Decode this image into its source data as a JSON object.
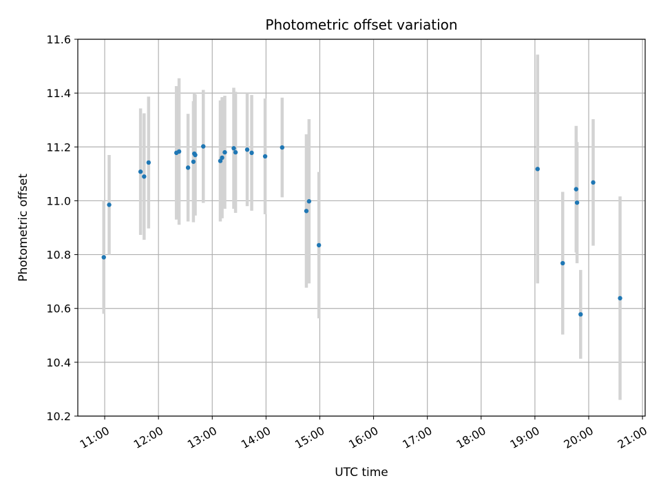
{
  "chart_data": {
    "type": "scatter",
    "title": "Photometric offset variation",
    "xlabel": "UTC time",
    "ylabel": "Photometric offset",
    "ylim": [
      10.2,
      11.6
    ],
    "xlim": [
      "10:30",
      "21:03"
    ],
    "grid": true,
    "x_ticks": [
      "11:00",
      "12:00",
      "13:00",
      "14:00",
      "15:00",
      "16:00",
      "17:00",
      "18:00",
      "19:00",
      "20:00",
      "21:00"
    ],
    "y_ticks": [
      "10.2",
      "10.4",
      "10.6",
      "10.8",
      "11.0",
      "11.2",
      "11.4",
      "11.6"
    ],
    "colors": {
      "points": "#1f77b4",
      "error_bars": "#d3d3d3",
      "grid": "#b0b0b0"
    },
    "series": [
      {
        "points": [
          {
            "x": "10:59",
            "y": 10.79,
            "err": 0.21
          },
          {
            "x": "11:05",
            "y": 10.985,
            "err": 0.185
          },
          {
            "x": "11:40",
            "y": 11.108,
            "err": 0.235
          },
          {
            "x": "11:44",
            "y": 11.09,
            "err": 0.235
          },
          {
            "x": "11:49",
            "y": 11.142,
            "err": 0.245
          },
          {
            "x": "12:20",
            "y": 11.178,
            "err": 0.248
          },
          {
            "x": "12:23",
            "y": 11.183,
            "err": 0.272
          },
          {
            "x": "12:33",
            "y": 11.123,
            "err": 0.2
          },
          {
            "x": "12:39",
            "y": 11.145,
            "err": 0.225
          },
          {
            "x": "12:40",
            "y": 11.175,
            "err": 0.225
          },
          {
            "x": "12:41",
            "y": 11.17,
            "err": 0.225
          },
          {
            "x": "12:50",
            "y": 11.202,
            "err": 0.21
          },
          {
            "x": "13:09",
            "y": 11.148,
            "err": 0.225
          },
          {
            "x": "13:11",
            "y": 11.16,
            "err": 0.225
          },
          {
            "x": "13:14",
            "y": 11.18,
            "err": 0.21
          },
          {
            "x": "13:24",
            "y": 11.195,
            "err": 0.225
          },
          {
            "x": "13:26",
            "y": 11.18,
            "err": 0.225
          },
          {
            "x": "13:39",
            "y": 11.19,
            "err": 0.21
          },
          {
            "x": "13:44",
            "y": 11.178,
            "err": 0.215
          },
          {
            "x": "13:59",
            "y": 11.165,
            "err": 0.215
          },
          {
            "x": "14:18",
            "y": 11.198,
            "err": 0.185
          },
          {
            "x": "14:45",
            "y": 10.962,
            "err": 0.285
          },
          {
            "x": "14:48",
            "y": 10.998,
            "err": 0.305
          },
          {
            "x": "14:59",
            "y": 10.835,
            "err": 0.272
          },
          {
            "x": "19:03",
            "y": 11.118,
            "err": 0.425
          },
          {
            "x": "19:31",
            "y": 10.768,
            "err": 0.265
          },
          {
            "x": "19:46",
            "y": 11.043,
            "err": 0.235
          },
          {
            "x": "19:47",
            "y": 10.993,
            "err": 0.225
          },
          {
            "x": "19:51",
            "y": 10.578,
            "err": 0.165
          },
          {
            "x": "20:05",
            "y": 11.068,
            "err": 0.235
          },
          {
            "x": "20:35",
            "y": 10.638,
            "err": 0.378
          }
        ]
      }
    ]
  }
}
